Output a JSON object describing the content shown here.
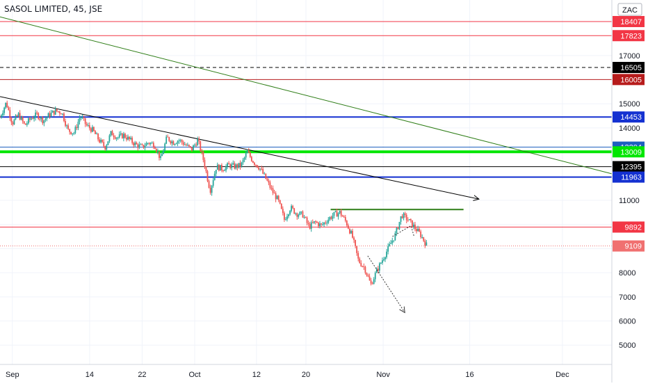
{
  "header": {
    "title": "SASOL LIMITED, 45, JSE"
  },
  "currency_badge": "ZAC",
  "colors": {
    "up": "#26a69a",
    "down": "#ef5350",
    "red": "#f23645",
    "darkred": "#b71c1c",
    "blue": "#1431d1",
    "steel": "#1e5fbf",
    "green": "#00e600",
    "darkgreen": "#2e7d16",
    "black": "#000000",
    "current": "#f07070"
  },
  "chart_data": {
    "type": "candlestick",
    "ylim": [
      4200,
      19300
    ],
    "xlim": [
      0,
      99
    ],
    "y_ticks": [
      "5000",
      "6000",
      "7000",
      "8000",
      "9000",
      "10000",
      "11000",
      "12000",
      "13000",
      "14000",
      "15000",
      "16000",
      "17000"
    ],
    "y_tick_values": [
      5000,
      6000,
      7000,
      8000,
      9000,
      10000,
      11000,
      12000,
      13000,
      14000,
      15000,
      16000,
      17000
    ],
    "x_ticks": [
      {
        "label": "Sep",
        "x": 2
      },
      {
        "label": "14",
        "x": 14.5
      },
      {
        "label": "22",
        "x": 23
      },
      {
        "label": "Oct",
        "x": 31.5
      },
      {
        "label": "12",
        "x": 41.5
      },
      {
        "label": "20",
        "x": 49.5
      },
      {
        "label": "Nov",
        "x": 62
      },
      {
        "label": "16",
        "x": 76
      },
      {
        "label": "Dec",
        "x": 91
      }
    ],
    "price_labels": [
      {
        "text": "18407",
        "value": 18407,
        "color": "red",
        "line": "solid"
      },
      {
        "text": "17823",
        "value": 17823,
        "color": "red",
        "line": "solid"
      },
      {
        "text": "16505",
        "value": 16505,
        "color": "black",
        "line": "dashed"
      },
      {
        "text": "16005",
        "value": 16005,
        "color": "darkred",
        "line": "solid"
      },
      {
        "text": "14453",
        "value": 14453,
        "color": "blue",
        "line": "solid"
      },
      {
        "text": "13204",
        "value": 13204,
        "color": "steel",
        "line": "solid"
      },
      {
        "text": "13009",
        "value": 13009,
        "color": "green",
        "line": "solid"
      },
      {
        "text": "12395",
        "value": 12395,
        "color": "black",
        "line": "solid"
      },
      {
        "text": "11963",
        "value": 11963,
        "color": "blue",
        "line": "solid"
      },
      {
        "text": "9892",
        "value": 9892,
        "color": "red",
        "line": "solid"
      },
      {
        "text": "9109",
        "value": 9109,
        "color": "current",
        "line": "dotted"
      }
    ],
    "trendlines": [
      {
        "name": "green-trendline",
        "color": "darkgreen",
        "x1": 0,
        "y1": 18600,
        "x2": 99,
        "y2": 12100,
        "arrow": false
      },
      {
        "name": "black-trendline",
        "color": "black",
        "x1": 0,
        "y1": 15300,
        "x2": 77.5,
        "y2": 11050,
        "arrow": true
      },
      {
        "name": "resistance-segment",
        "color": "darkgreen",
        "x1": 53.5,
        "y1": 10620,
        "x2": 75,
        "y2": 10620,
        "arrow": false,
        "width": 2
      }
    ],
    "projection": [
      {
        "x": 59.5,
        "y": 8700
      },
      {
        "x": 65.5,
        "y": 6350
      }
    ],
    "projection_small": [
      {
        "x": 63.5,
        "y": 9500
      },
      {
        "x": 66.5,
        "y": 9950
      },
      {
        "x": 67,
        "y": 9500
      }
    ],
    "close_path": [
      [
        0,
        14450
      ],
      [
        1,
        15050
      ],
      [
        2,
        14200
      ],
      [
        3,
        14550
      ],
      [
        4,
        14100
      ],
      [
        5,
        14400
      ],
      [
        6,
        14550
      ],
      [
        7,
        14300
      ],
      [
        8,
        14550
      ],
      [
        9,
        14700
      ],
      [
        10,
        14650
      ],
      [
        11,
        13900
      ],
      [
        12,
        13800
      ],
      [
        13,
        14500
      ],
      [
        14,
        14100
      ],
      [
        15,
        13900
      ],
      [
        16,
        13500
      ],
      [
        17,
        13200
      ],
      [
        18,
        13800
      ],
      [
        19,
        13600
      ],
      [
        20,
        13700
      ],
      [
        21,
        13500
      ],
      [
        22,
        13300
      ],
      [
        23,
        13200
      ],
      [
        24,
        13400
      ],
      [
        25,
        13300
      ],
      [
        26,
        12700
      ],
      [
        27,
        13600
      ],
      [
        28,
        13400
      ],
      [
        29,
        13500
      ],
      [
        30,
        13300
      ],
      [
        31,
        13100
      ],
      [
        32,
        13500
      ],
      [
        33,
        12600
      ],
      [
        34,
        11400
      ],
      [
        35,
        12400
      ],
      [
        36,
        12300
      ],
      [
        37,
        12450
      ],
      [
        38,
        12400
      ],
      [
        39,
        12450
      ],
      [
        40,
        13000
      ],
      [
        41,
        12600
      ],
      [
        42,
        12350
      ],
      [
        43,
        11900
      ],
      [
        44,
        11400
      ],
      [
        45,
        11000
      ],
      [
        46,
        10200
      ],
      [
        47,
        10700
      ],
      [
        48,
        10450
      ],
      [
        49,
        10400
      ],
      [
        50,
        9900
      ],
      [
        51,
        10100
      ],
      [
        52,
        9950
      ],
      [
        53,
        10200
      ],
      [
        54,
        10400
      ],
      [
        55,
        10500
      ],
      [
        56,
        10100
      ],
      [
        57,
        9500
      ],
      [
        58,
        8500
      ],
      [
        59,
        8200
      ],
      [
        60,
        7500
      ],
      [
        61,
        8100
      ],
      [
        62,
        8600
      ],
      [
        63,
        9100
      ],
      [
        64,
        9600
      ],
      [
        65,
        10400
      ],
      [
        66,
        10200
      ],
      [
        67,
        9900
      ],
      [
        68,
        9600
      ],
      [
        69,
        9150
      ]
    ]
  }
}
